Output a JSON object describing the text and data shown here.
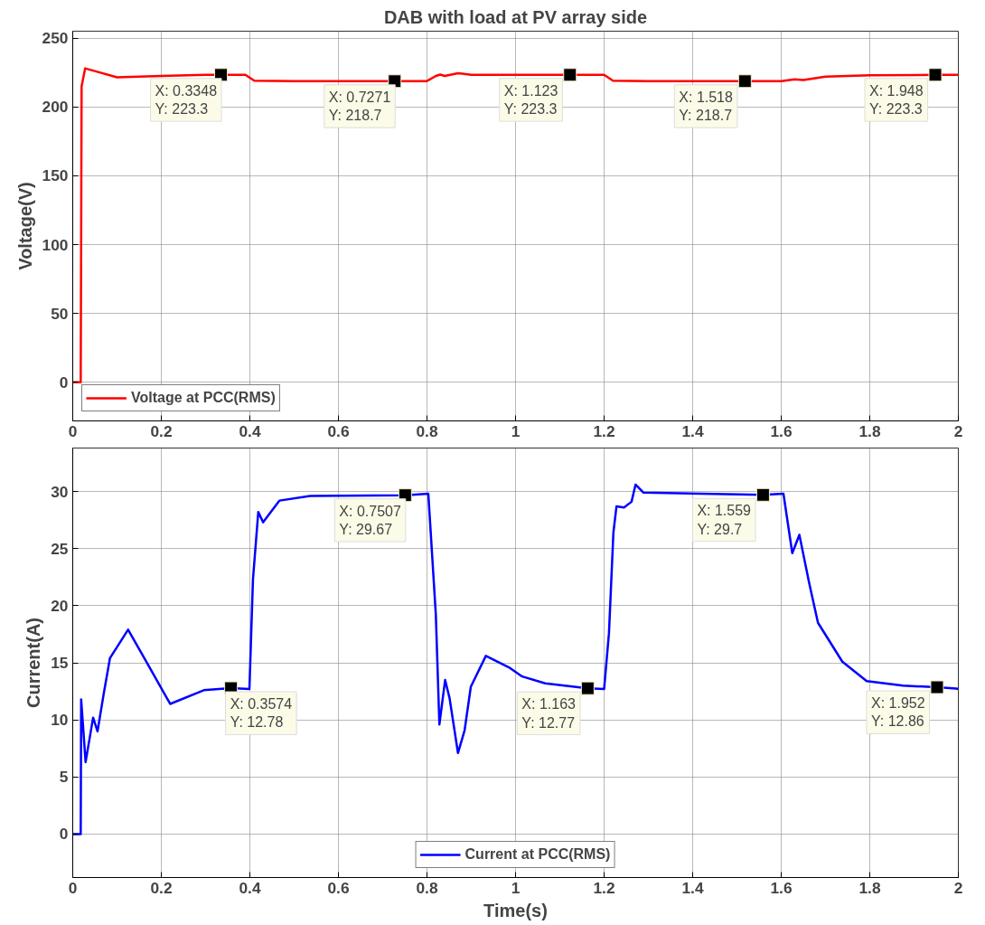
{
  "chart_data": [
    {
      "type": "line",
      "title": "DAB with load at PV array side",
      "ylabel": "Voltage(V)",
      "xlim": [
        0,
        2
      ],
      "ylim": [
        -28,
        255
      ],
      "xticks": [
        0,
        0.2,
        0.4,
        0.6,
        0.8,
        1,
        1.2,
        1.4,
        1.6,
        1.8,
        2
      ],
      "yticks": [
        0,
        50,
        100,
        150,
        200,
        250
      ],
      "grid": true,
      "legend": "bottom left",
      "series": [
        {
          "name": "Voltage at PCC(RMS)",
          "color": "#ff0000",
          "x": [
            0,
            0.018,
            0.02,
            0.028,
            0.05,
            0.1,
            0.2,
            0.3,
            0.3348,
            0.39,
            0.41,
            0.5,
            0.7271,
            0.8,
            0.82,
            0.83,
            0.84,
            0.87,
            0.9,
            1.123,
            1.2,
            1.22,
            1.3,
            1.518,
            1.6,
            1.63,
            1.65,
            1.7,
            1.8,
            1.948,
            2
          ],
          "values": [
            0,
            0,
            215,
            228,
            226,
            221.5,
            222.5,
            223.3,
            223.3,
            223.3,
            219,
            218.7,
            218.7,
            218.8,
            222.5,
            223.5,
            222.5,
            224.5,
            223.3,
            223.3,
            223.3,
            219,
            218.7,
            218.7,
            218.7,
            220,
            219.5,
            222,
            223,
            223.3,
            223.3
          ]
        }
      ],
      "annotations": [
        {
          "text": "X: 0.3348\nY: 223.3",
          "x": 0.3348,
          "y": 223.3
        },
        {
          "text": "X: 0.7271\nY: 218.7",
          "x": 0.7271,
          "y": 218.7
        },
        {
          "text": "X: 1.123\nY: 223.3",
          "x": 1.123,
          "y": 223.3
        },
        {
          "text": "X: 1.518\nY: 218.7",
          "x": 1.518,
          "y": 218.7
        },
        {
          "text": "X: 1.948\nY: 223.3",
          "x": 1.948,
          "y": 223.3
        }
      ]
    },
    {
      "type": "line",
      "xlabel": "Time(s)",
      "ylabel": "Current(A)",
      "xlim": [
        0,
        2
      ],
      "ylim": [
        -3.8,
        33.8
      ],
      "xticks": [
        0,
        0.2,
        0.4,
        0.6,
        0.8,
        1,
        1.2,
        1.4,
        1.6,
        1.8,
        2
      ],
      "yticks": [
        0,
        5,
        10,
        15,
        20,
        25,
        30
      ],
      "grid": true,
      "legend": "bottom",
      "series": [
        {
          "name": "Current at PCC(RMS)",
          "color": "#0000ff",
          "x": [
            0,
            0.018,
            0.019,
            0.029,
            0.046,
            0.056,
            0.07,
            0.084,
            0.125,
            0.166,
            0.22,
            0.296,
            0.3574,
            0.399,
            0.407,
            0.419,
            0.43,
            0.467,
            0.536,
            0.7507,
            0.803,
            0.82,
            0.828,
            0.841,
            0.851,
            0.87,
            0.885,
            0.899,
            0.933,
            0.985,
            1.015,
            1.067,
            1.163,
            1.2,
            1.211,
            1.221,
            1.228,
            1.245,
            1.262,
            1.271,
            1.289,
            1.559,
            1.605,
            1.625,
            1.641,
            1.663,
            1.683,
            1.738,
            1.793,
            1.875,
            1.952,
            1.995,
            2
          ],
          "values": [
            0,
            0,
            11.8,
            6.3,
            10.2,
            9.0,
            12.3,
            15.4,
            17.9,
            15.1,
            11.4,
            12.6,
            12.78,
            12.7,
            22.3,
            28.2,
            27.3,
            29.2,
            29.6,
            29.67,
            29.8,
            19.2,
            9.6,
            13.5,
            11.9,
            7.1,
            9.1,
            12.9,
            15.6,
            14.6,
            13.8,
            13.2,
            12.77,
            12.7,
            17.6,
            26.4,
            28.7,
            28.6,
            29.1,
            30.6,
            29.9,
            29.7,
            29.8,
            24.6,
            26.2,
            22.0,
            18.5,
            15.1,
            13.4,
            13.0,
            12.86,
            12.75,
            12.7
          ]
        }
      ],
      "annotations": [
        {
          "text": "X: 0.3574\nY: 12.78",
          "x": 0.3574,
          "y": 12.78
        },
        {
          "text": "X: 0.7507\nY: 29.67",
          "x": 0.7507,
          "y": 29.67
        },
        {
          "text": "X: 1.163\nY: 12.77",
          "x": 1.163,
          "y": 12.77
        },
        {
          "text": "X: 1.559\nY: 29.7",
          "x": 1.559,
          "y": 29.7
        },
        {
          "text": "X: 1.952\nY: 12.86",
          "x": 1.952,
          "y": 12.86
        }
      ]
    }
  ]
}
